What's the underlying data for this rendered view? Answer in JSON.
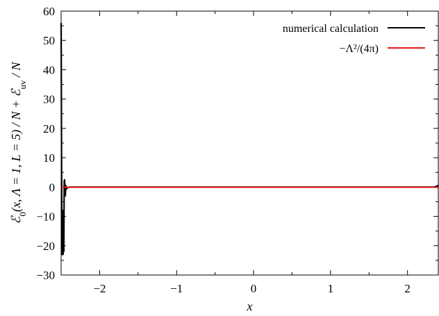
{
  "chart_data": {
    "type": "line",
    "title": "",
    "xlabel": "x",
    "ylabel": "ℰ0(x, Λ = 1, L = 5) / N + ℰuv / N",
    "xlim": [
      -2.5,
      2.4
    ],
    "ylim": [
      -30,
      60
    ],
    "xticks": [
      -2,
      -1,
      0,
      1,
      2
    ],
    "yticks": [
      -30,
      -20,
      -10,
      0,
      10,
      20,
      30,
      40,
      50,
      60
    ],
    "grid": false,
    "legend": "top-right",
    "series": [
      {
        "name": "numerical calculation",
        "color": "#000000",
        "x": [
          -2.5,
          -2.49,
          -2.48,
          -2.475,
          -2.47,
          -2.465,
          -2.46,
          -2.455,
          -2.45,
          -2.445,
          -2.44,
          -2.43,
          -2.42,
          -2.4,
          -2.38,
          -2.35,
          -2.3,
          -2.2,
          -2.0,
          -1.5,
          -1.0,
          0.0,
          1.0,
          2.0,
          2.3,
          2.35,
          2.38,
          2.4
        ],
        "y": [
          56,
          -23,
          -8,
          -23,
          -18,
          -22,
          2,
          2.5,
          -0.5,
          -3,
          0.5,
          -0.6,
          -0.2,
          -0.1,
          0,
          0,
          0,
          0,
          0,
          0,
          0,
          0,
          0,
          0,
          0,
          0,
          0.3,
          0.6
        ]
      },
      {
        "name": "−Λ²/(4π)",
        "color": "#e41a1c",
        "x": [
          -2.5,
          2.4
        ],
        "y": [
          -0.0796,
          -0.0796
        ]
      }
    ]
  }
}
